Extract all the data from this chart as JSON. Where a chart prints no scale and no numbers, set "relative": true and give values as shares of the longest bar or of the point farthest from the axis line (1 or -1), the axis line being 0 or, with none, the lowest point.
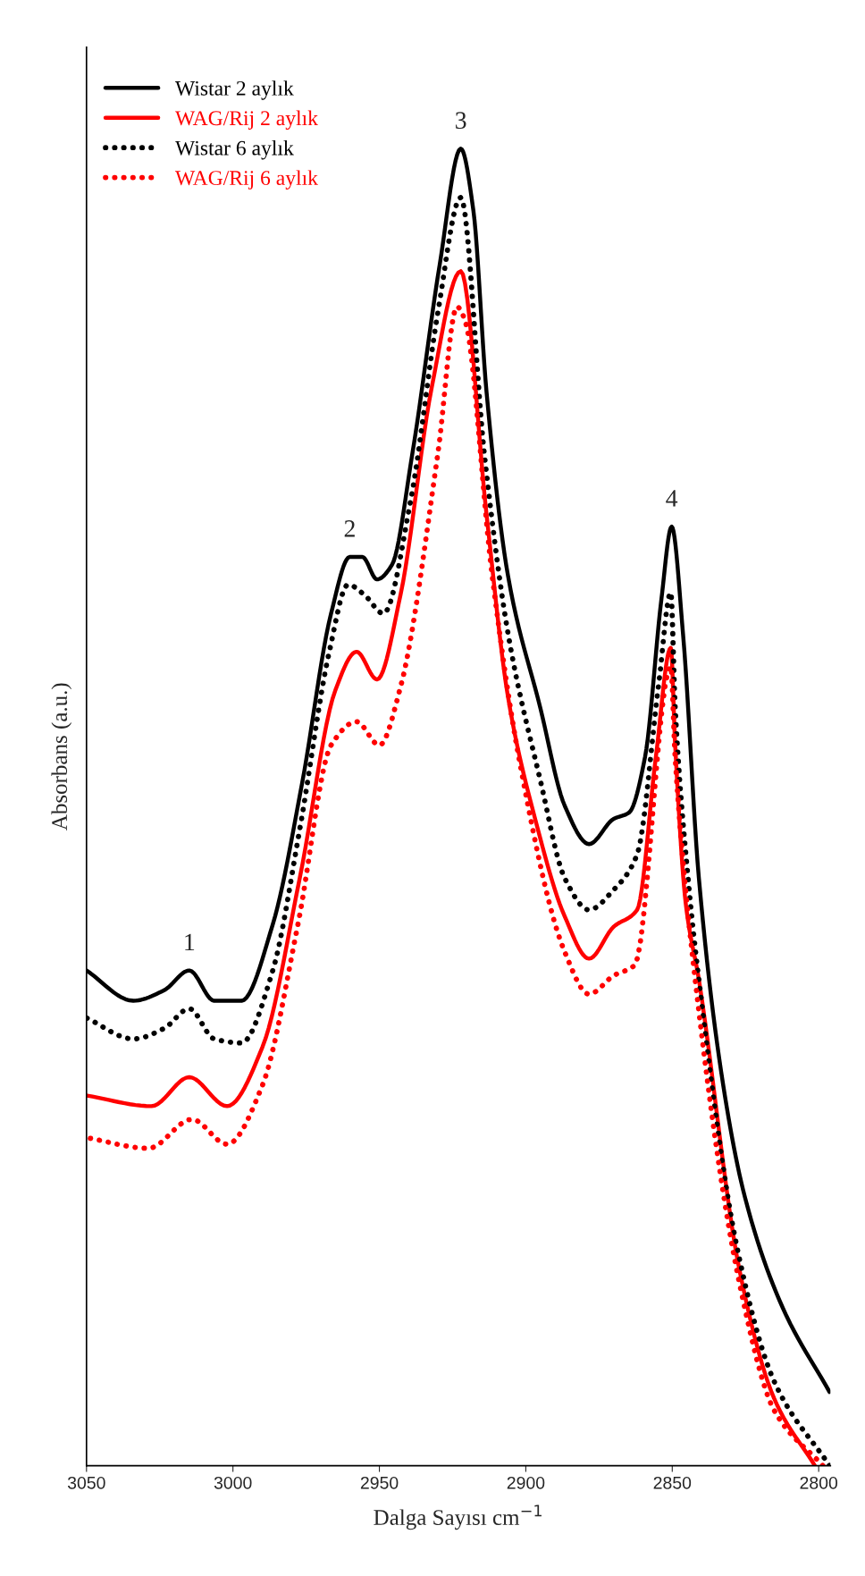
{
  "chart_data": {
    "type": "line",
    "relative": true,
    "xlabel": "Dalga Sayısı cm$^{−1}$",
    "ylabel": "Absorbans (a.u.)",
    "xlim": [
      3050,
      2796
    ],
    "xticks": [
      2800,
      2850,
      2900,
      2950,
      3000,
      3050
    ],
    "legend": "top left",
    "grid": false,
    "series": [
      {
        "name": "Wistar 2 aylık",
        "color": "#000000",
        "line_style": "solid",
        "x": [
          2796.3,
          2812.3,
          2825.2,
          2832.6,
          2840.9,
          2846.3,
          2850.2,
          2853.7,
          2859.3,
          2864.7,
          2870.1,
          2878.4,
          2886.7,
          2895.0,
          2906.1,
          2913.4,
          2917.9,
          2922.2,
          2929.4,
          2938.7,
          2945.7,
          2950.8,
          2955.8,
          2960.1,
          2966.5,
          2976.4,
          2986.4,
          2997.1,
          3006.4,
          3014.9,
          3023.5,
          3034.0,
          3050.0
        ],
        "values": [
          0.056,
          0.12,
          0.204,
          0.289,
          0.446,
          0.631,
          0.713,
          0.658,
          0.538,
          0.496,
          0.491,
          0.472,
          0.501,
          0.575,
          0.676,
          0.815,
          0.953,
          1.0,
          0.912,
          0.769,
          0.684,
          0.673,
          0.69,
          0.69,
          0.647,
          0.518,
          0.411,
          0.353,
          0.353,
          0.376,
          0.361,
          0.353,
          0.376
        ]
      },
      {
        "name": "WAG/Rij 2 aylık",
        "color": "#ff0000",
        "line_style": "solid",
        "x": [
          2801.3,
          2815.2,
          2827.0,
          2840.9,
          2845.4,
          2849.0,
          2850.5,
          2855.6,
          2862.0,
          2870.1,
          2878.4,
          2886.7,
          2896.8,
          2906.1,
          2913.4,
          2922.2,
          2932.1,
          2942.8,
          2950.8,
          2957.8,
          2965.0,
          2977.2,
          2989.9,
          3002.0,
          3014.9,
          3027.8,
          3049.8
        ],
        "values": [
          0.0,
          0.051,
          0.148,
          0.369,
          0.427,
          0.547,
          0.621,
          0.538,
          0.422,
          0.409,
          0.385,
          0.417,
          0.491,
          0.584,
          0.722,
          0.907,
          0.819,
          0.661,
          0.597,
          0.618,
          0.589,
          0.446,
          0.318,
          0.273,
          0.295,
          0.273,
          0.281
        ]
      },
      {
        "name": "Wistar 6 aylık",
        "color": "#000000",
        "line_style": "dotted",
        "x": [
          2796.3,
          2815.2,
          2828.0,
          2840.9,
          2844.6,
          2849.0,
          2850.5,
          2854.6,
          2862.0,
          2870.1,
          2878.4,
          2886.7,
          2895.0,
          2906.0,
          2914.2,
          2922.2,
          2930.0,
          2939.3,
          2948.6,
          2955.0,
          2960.7,
          2967.1,
          2977.2,
          2986.4,
          2997.1,
          3006.4,
          3014.9,
          3023.5,
          3034.0,
          3050.0
        ],
        "values": [
          0.0,
          0.064,
          0.167,
          0.369,
          0.446,
          0.575,
          0.663,
          0.594,
          0.464,
          0.437,
          0.422,
          0.446,
          0.52,
          0.631,
          0.769,
          0.963,
          0.876,
          0.733,
          0.647,
          0.661,
          0.669,
          0.618,
          0.483,
          0.376,
          0.321,
          0.324,
          0.347,
          0.332,
          0.324,
          0.34
        ]
      },
      {
        "name": "WAG/Rij 6 aylık",
        "color": "#ff0000",
        "line_style": "dotted",
        "x": [
          2798.6,
          2815.2,
          2827.0,
          2841.7,
          2849.0,
          2850.5,
          2862.8,
          2870.1,
          2878.4,
          2886.7,
          2902.4,
          2911.5,
          2920.8,
          2923.5,
          2930.0,
          2942.8,
          2950.0,
          2957.8,
          2966.5,
          2977.8,
          2989.9,
          3002.0,
          3014.0,
          3028.8,
          3049.8
        ],
        "values": [
          0.0,
          0.042,
          0.138,
          0.36,
          0.538,
          0.607,
          0.38,
          0.372,
          0.358,
          0.39,
          0.538,
          0.676,
          0.87,
          0.88,
          0.769,
          0.591,
          0.547,
          0.565,
          0.547,
          0.411,
          0.289,
          0.244,
          0.263,
          0.241,
          0.249
        ]
      }
    ],
    "annotations": [
      {
        "text": "1",
        "x": 3014.9,
        "y": 0.376
      },
      {
        "text": "2",
        "x": 2960.1,
        "y": 0.69
      },
      {
        "text": "3",
        "x": 2922.2,
        "y": 1.0
      },
      {
        "text": "4",
        "x": 2850.2,
        "y": 0.713
      }
    ]
  }
}
